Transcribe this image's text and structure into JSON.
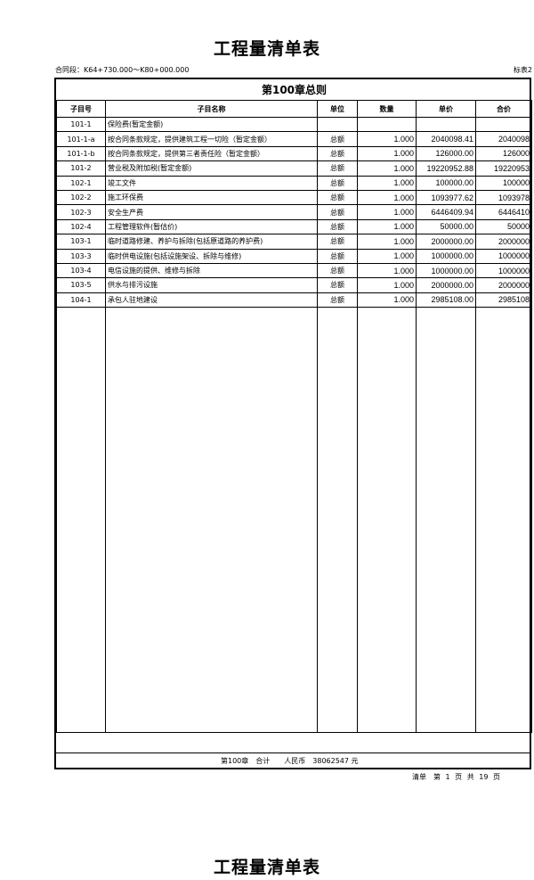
{
  "title": "工程量清单表",
  "contract_section": "合同段：K64+730.000～K80+000.000",
  "table_no": "标表2",
  "chapter_title": "第100章总则",
  "headers": [
    "子目号",
    "子目名称",
    "单位",
    "数量",
    "单价",
    "合价"
  ],
  "rows": [
    [
      "101-1",
      "保险费(暂定金额)",
      "",
      "",
      "",
      ""
    ],
    [
      "101-1-a",
      "按合同条款规定，提供建筑工程一切险（暂定金额）",
      "总额",
      "1.000",
      "2040098.41",
      "2040098"
    ],
    [
      "101-1-b",
      "按合同条款规定，提供第三者责任险（暂定金额）",
      "总额",
      "1.000",
      "126000.00",
      "126000"
    ],
    [
      "101-2",
      "营业税及附加税(暂定金额)",
      "总额",
      "1.000",
      "19220952.88",
      "19220953"
    ],
    [
      "102-1",
      "竣工文件",
      "总额",
      "1.000",
      "100000.00",
      "100000"
    ],
    [
      "102-2",
      "施工环保费",
      "总额",
      "1.000",
      "1093977.62",
      "1093978"
    ],
    [
      "102-3",
      "安全生产费",
      "总额",
      "1.000",
      "6446409.94",
      "6446410"
    ],
    [
      "102-4",
      "工程管理软件(暂估价)",
      "总额",
      "1.000",
      "50000.00",
      "50000"
    ],
    [
      "103-1",
      "临时道路修建、养护与拆除(包括原道路的养护费)",
      "总额",
      "1.000",
      "2000000.00",
      "2000000"
    ],
    [
      "103-3",
      "临时供电设施(包括设施架设、拆除与维修)",
      "总额",
      "1.000",
      "1000000.00",
      "1000000"
    ],
    [
      "103-4",
      "电信设施的提供、维修与拆除",
      "总额",
      "1.000",
      "1000000.00",
      "1000000"
    ],
    [
      "103-5",
      "供水与排污设施",
      "总额",
      "1.000",
      "2000000.00",
      "2000000"
    ],
    [
      "104-1",
      "承包人驻地建设",
      "总额",
      "1.000",
      "2985108.00",
      "2985108"
    ]
  ],
  "total": "第100章　合计　　人民币　38062547 元",
  "footer": "清单　第 1 页 共 19 页",
  "next_title": "工程量清单表"
}
